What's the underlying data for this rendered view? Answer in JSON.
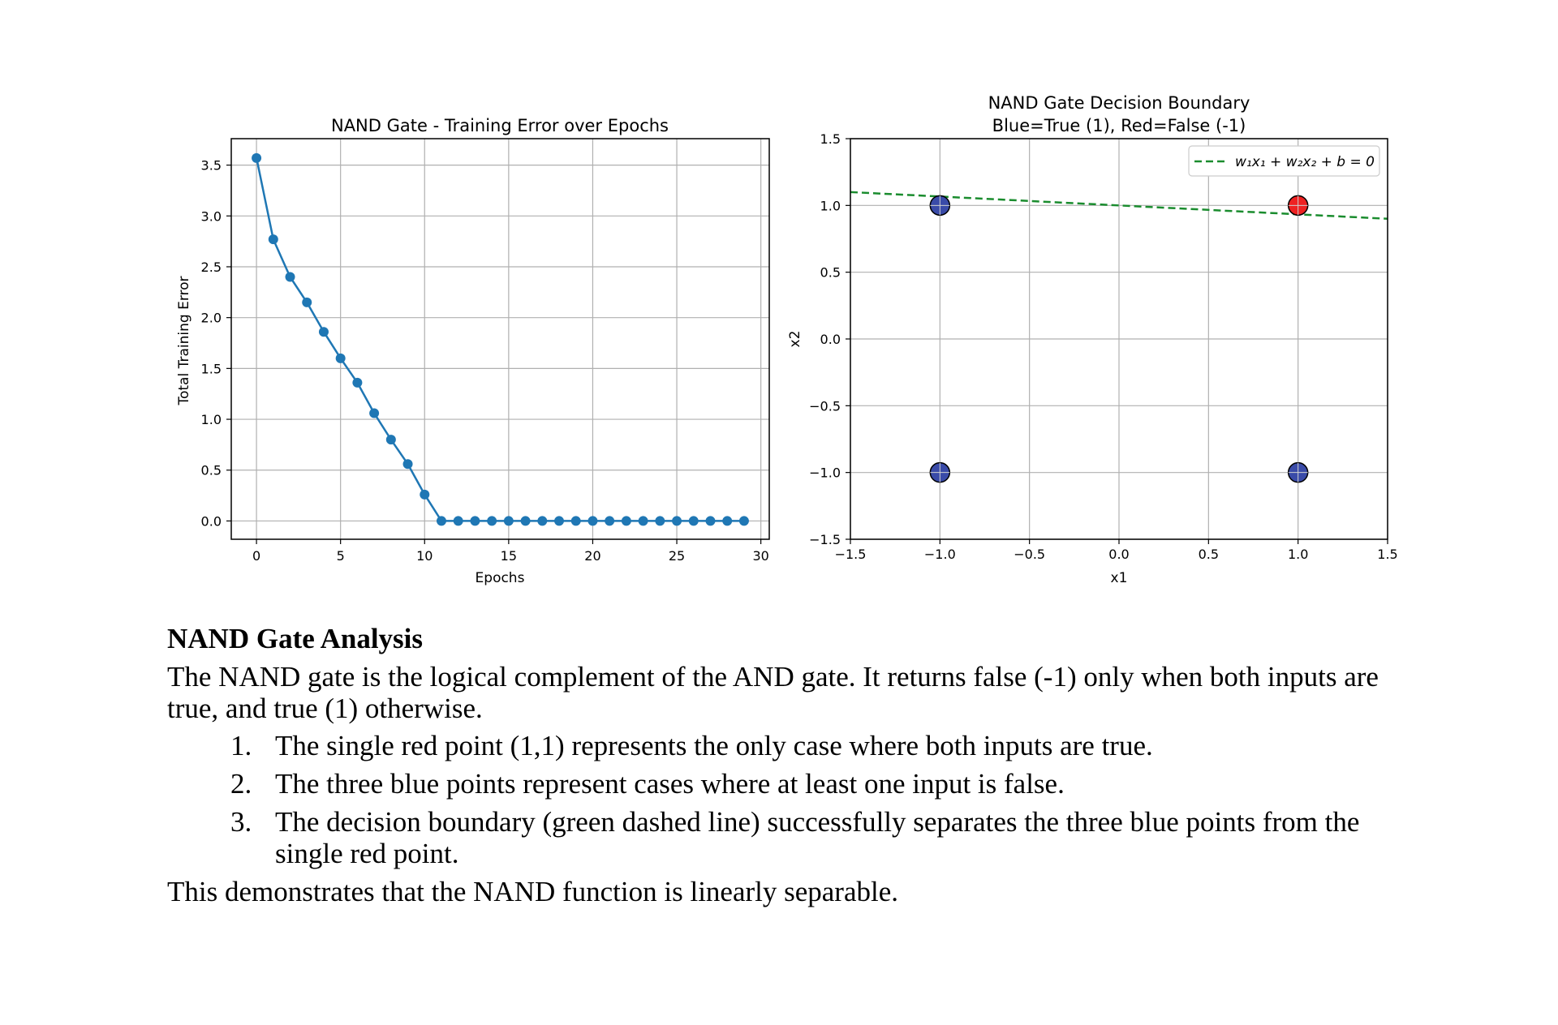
{
  "chart_data": [
    {
      "type": "line",
      "title": "NAND Gate - Training Error over Epochs",
      "xlabel": "Epochs",
      "ylabel": "Total Training Error",
      "xlim": [
        -1.5,
        30.5
      ],
      "ylim": [
        -0.18,
        3.76
      ],
      "xticks": [
        "0",
        "5",
        "10",
        "15",
        "20",
        "25",
        "30"
      ],
      "yticks": [
        "0.0",
        "0.5",
        "1.0",
        "1.5",
        "2.0",
        "2.5",
        "3.0",
        "3.5"
      ],
      "grid": true,
      "color": "#1f77b4",
      "x": [
        0,
        1,
        2,
        3,
        4,
        5,
        6,
        7,
        8,
        9,
        10,
        11,
        12,
        13,
        14,
        15,
        16,
        17,
        18,
        19,
        20,
        21,
        22,
        23,
        24,
        25,
        26,
        27,
        28,
        29
      ],
      "values": [
        3.57,
        2.77,
        2.4,
        2.15,
        1.86,
        1.6,
        1.36,
        1.06,
        0.8,
        0.56,
        0.26,
        0,
        0,
        0,
        0,
        0,
        0,
        0,
        0,
        0,
        0,
        0,
        0,
        0,
        0,
        0,
        0,
        0,
        0,
        0
      ]
    },
    {
      "type": "scatter",
      "title_line1": "NAND Gate Decision Boundary",
      "title_line2": "Blue=True (1), Red=False (-1)",
      "xlabel": "x1",
      "ylabel": "x2",
      "xlim": [
        -1.5,
        1.5
      ],
      "ylim": [
        -1.5,
        1.5
      ],
      "xticks": [
        "−1.5",
        "−1.0",
        "−0.5",
        "0.0",
        "0.5",
        "1.0",
        "1.5"
      ],
      "yticks": [
        "−1.5",
        "−1.0",
        "−0.5",
        "0.0",
        "0.5",
        "1.0",
        "1.5"
      ],
      "grid": true,
      "legend_position": "top-right",
      "legend_label": "w₁x₁ + w₂x₂ + b = 0",
      "boundary": {
        "x": [
          -1.5,
          1.5
        ],
        "y": [
          1.1,
          0.9
        ],
        "color": "#1a8c2e",
        "style": "dashed"
      },
      "points": [
        {
          "x": -1,
          "y": 1,
          "label": "True (1)",
          "color": "#3a4ba8"
        },
        {
          "x": 1,
          "y": 1,
          "label": "False (-1)",
          "color": "#ee2222"
        },
        {
          "x": -1,
          "y": -1,
          "label": "True (1)",
          "color": "#3a4ba8"
        },
        {
          "x": 1,
          "y": -1,
          "label": "True (1)",
          "color": "#3a4ba8"
        }
      ]
    }
  ],
  "analysis": {
    "heading": "NAND Gate Analysis",
    "intro": "The NAND gate is the logical complement of the AND gate. It returns false (-1) only when both inputs are true, and true (1) otherwise.",
    "items": [
      "The single red point (1,1) represents the only case where both inputs are true.",
      "The three blue points represent cases where at least one input is false.",
      "The decision boundary (green dashed line) successfully separates the three blue points from the single red point."
    ],
    "conclusion": "This demonstrates that the NAND function is linearly separable."
  }
}
